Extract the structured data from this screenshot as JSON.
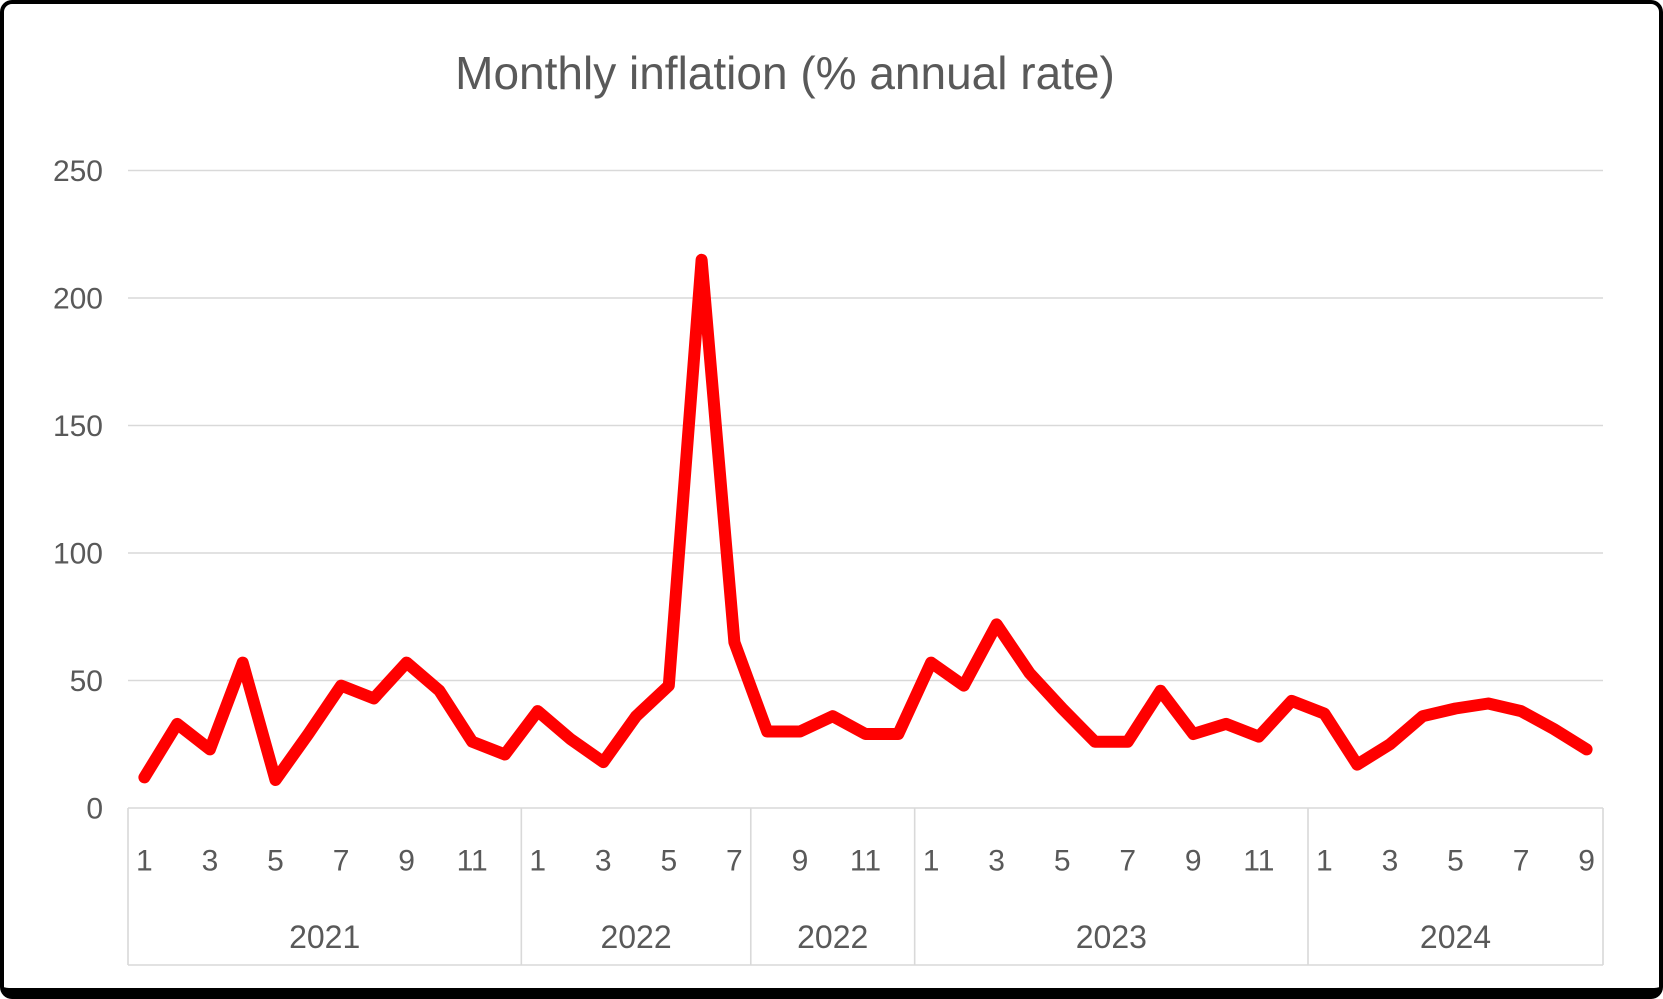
{
  "chart_data": {
    "type": "line",
    "title": "Monthly inflation (% annual rate)",
    "xlabel": "",
    "ylabel": "",
    "ylim": [
      0,
      250
    ],
    "y_ticks": [
      0,
      50,
      100,
      150,
      200,
      250
    ],
    "grid": true,
    "legend_position": "none",
    "series_name": "Monthly inflation",
    "groups": [
      {
        "year": "2021",
        "months": [
          1,
          2,
          3,
          4,
          5,
          6,
          7,
          8,
          9,
          10,
          11,
          12
        ],
        "values": [
          12,
          33,
          23,
          57,
          11,
          29,
          48,
          43,
          57,
          46,
          26,
          21
        ],
        "tick_labels": [
          "1",
          "3",
          "5",
          "7",
          "9",
          "11"
        ]
      },
      {
        "year": "2022",
        "months": [
          1,
          2,
          3,
          4,
          5,
          6,
          7
        ],
        "values": [
          38,
          27,
          18,
          36,
          48,
          215,
          65
        ],
        "tick_labels": [
          "1",
          "3",
          "5",
          "7"
        ]
      },
      {
        "year": "2022",
        "months": [
          8,
          9,
          10,
          11,
          12
        ],
        "values": [
          30,
          30,
          36,
          29,
          29
        ],
        "tick_labels": [
          "9",
          "11"
        ]
      },
      {
        "year": "2023",
        "months": [
          1,
          2,
          3,
          4,
          5,
          6,
          7,
          8,
          9,
          10,
          11,
          12
        ],
        "values": [
          57,
          48,
          72,
          53,
          39,
          26,
          26,
          46,
          29,
          33,
          28,
          42
        ],
        "tick_labels": [
          "1",
          "3",
          "5",
          "7",
          "9",
          "11"
        ]
      },
      {
        "year": "2024",
        "months": [
          1,
          2,
          3,
          4,
          5,
          6,
          7,
          8,
          9
        ],
        "values": [
          37,
          17,
          25,
          36,
          39,
          41,
          38,
          31,
          23
        ],
        "tick_labels": [
          "1",
          "3",
          "5",
          "7",
          "9"
        ]
      }
    ]
  },
  "colors": {
    "line": "#FF0000",
    "gridline": "#D9D9D9",
    "axis_box_line": "#D9D9D9",
    "axis_text": "#595959",
    "title_text": "#595959",
    "frame_border": "#000000",
    "background": "#FFFFFF"
  }
}
